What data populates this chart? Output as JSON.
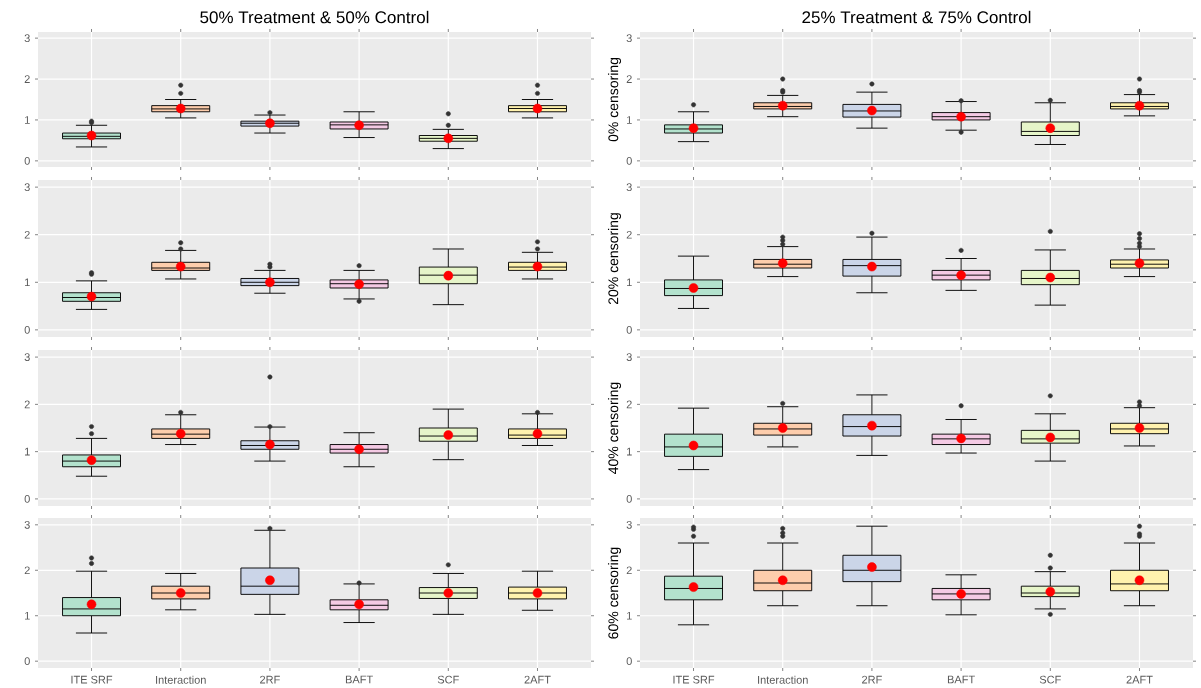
{
  "chart_data": [
    {
      "type": "box",
      "title": "50% Treatment & 50% Control",
      "categories": [
        null,
        null,
        null,
        null,
        null,
        null
      ],
      "colors": [
        "#b3e2cd",
        "#fdcdac",
        "#cbd5e8",
        "#f4cae4",
        "#e6f5c9",
        "#fff2ae"
      ],
      "ylim": [
        -0.15,
        3.15
      ],
      "yticks": [
        0,
        1,
        2,
        3
      ],
      "grid": true,
      "tick_labels": "y",
      "boxes": [
        {
          "low": 0.34,
          "q1": 0.54,
          "median": 0.6,
          "q3": 0.68,
          "high": 0.87,
          "mean": 0.62,
          "outliers": [
            0.93,
            0.97
          ]
        },
        {
          "low": 1.05,
          "q1": 1.2,
          "median": 1.27,
          "q3": 1.35,
          "high": 1.5,
          "mean": 1.28,
          "outliers": [
            1.65,
            1.85
          ]
        },
        {
          "low": 0.68,
          "q1": 0.85,
          "median": 0.92,
          "q3": 0.97,
          "high": 1.12,
          "mean": 0.92,
          "outliers": [
            1.18
          ]
        },
        {
          "low": 0.57,
          "q1": 0.78,
          "median": 0.88,
          "q3": 0.95,
          "high": 1.2,
          "mean": 0.87
        },
        {
          "low": 0.3,
          "q1": 0.48,
          "median": 0.55,
          "q3": 0.62,
          "high": 0.77,
          "mean": 0.55,
          "outliers": [
            0.87,
            1.15
          ]
        },
        {
          "low": 1.05,
          "q1": 1.2,
          "median": 1.28,
          "q3": 1.35,
          "high": 1.5,
          "mean": 1.28,
          "outliers": [
            1.65,
            1.85
          ]
        }
      ]
    },
    {
      "type": "box",
      "title": "25% Treatment & 75% Control",
      "ylabel": "0% censoring",
      "categories": [
        null,
        null,
        null,
        null,
        null,
        null
      ],
      "colors": [
        "#b3e2cd",
        "#fdcdac",
        "#cbd5e8",
        "#f4cae4",
        "#e6f5c9",
        "#fff2ae"
      ],
      "ylim": [
        -0.15,
        3.15
      ],
      "yticks": [
        0,
        1,
        2,
        3
      ],
      "grid": true,
      "tick_labels": "y",
      "boxes": [
        {
          "low": 0.47,
          "q1": 0.68,
          "median": 0.78,
          "q3": 0.88,
          "high": 1.2,
          "mean": 0.8,
          "outliers": [
            1.37
          ]
        },
        {
          "low": 1.08,
          "q1": 1.27,
          "median": 1.33,
          "q3": 1.42,
          "high": 1.6,
          "mean": 1.35,
          "outliers": [
            1.68,
            1.72,
            2.0
          ]
        },
        {
          "low": 0.8,
          "q1": 1.07,
          "median": 1.22,
          "q3": 1.38,
          "high": 1.68,
          "mean": 1.23,
          "outliers": [
            1.88
          ]
        },
        {
          "low": 0.75,
          "q1": 1.0,
          "median": 1.08,
          "q3": 1.18,
          "high": 1.45,
          "mean": 1.08,
          "outliers": [
            0.7,
            1.47
          ]
        },
        {
          "low": 0.4,
          "q1": 0.62,
          "median": 0.72,
          "q3": 0.95,
          "high": 1.42,
          "mean": 0.8,
          "outliers": [
            1.48
          ]
        },
        {
          "low": 1.1,
          "q1": 1.27,
          "median": 1.33,
          "q3": 1.42,
          "high": 1.62,
          "mean": 1.35,
          "outliers": [
            1.68,
            1.72,
            2.0
          ]
        }
      ]
    },
    {
      "type": "box",
      "categories": [
        null,
        null,
        null,
        null,
        null,
        null
      ],
      "colors": [
        "#b3e2cd",
        "#fdcdac",
        "#cbd5e8",
        "#f4cae4",
        "#e6f5c9",
        "#fff2ae"
      ],
      "ylim": [
        -0.15,
        3.15
      ],
      "yticks": [
        0,
        1,
        2,
        3
      ],
      "grid": true,
      "tick_labels": "y",
      "boxes": [
        {
          "low": 0.43,
          "q1": 0.6,
          "median": 0.68,
          "q3": 0.78,
          "high": 1.03,
          "mean": 0.7,
          "outliers": [
            1.17,
            1.2
          ]
        },
        {
          "low": 1.07,
          "q1": 1.25,
          "median": 1.3,
          "q3": 1.42,
          "high": 1.67,
          "mean": 1.33,
          "outliers": [
            1.7,
            1.83
          ]
        },
        {
          "low": 0.77,
          "q1": 0.93,
          "median": 1.0,
          "q3": 1.08,
          "high": 1.25,
          "mean": 1.0,
          "outliers": [
            1.32,
            1.38
          ]
        },
        {
          "low": 0.65,
          "q1": 0.88,
          "median": 0.97,
          "q3": 1.05,
          "high": 1.25,
          "mean": 0.96,
          "outliers": [
            0.6,
            1.35
          ]
        },
        {
          "low": 0.53,
          "q1": 0.97,
          "median": 1.15,
          "q3": 1.32,
          "high": 1.7,
          "mean": 1.14
        },
        {
          "low": 1.07,
          "q1": 1.25,
          "median": 1.32,
          "q3": 1.42,
          "high": 1.63,
          "mean": 1.33,
          "outliers": [
            1.7,
            1.85
          ]
        }
      ]
    },
    {
      "type": "box",
      "ylabel": "20% censoring",
      "categories": [
        null,
        null,
        null,
        null,
        null,
        null
      ],
      "colors": [
        "#b3e2cd",
        "#fdcdac",
        "#cbd5e8",
        "#f4cae4",
        "#e6f5c9",
        "#fff2ae"
      ],
      "ylim": [
        -0.15,
        3.15
      ],
      "yticks": [
        0,
        1,
        2,
        3
      ],
      "grid": true,
      "tick_labels": "y",
      "boxes": [
        {
          "low": 0.45,
          "q1": 0.72,
          "median": 0.87,
          "q3": 1.05,
          "high": 1.55,
          "mean": 0.88
        },
        {
          "low": 1.12,
          "q1": 1.3,
          "median": 1.38,
          "q3": 1.48,
          "high": 1.75,
          "mean": 1.4,
          "outliers": [
            1.8,
            1.88,
            1.95
          ]
        },
        {
          "low": 0.78,
          "q1": 1.13,
          "median": 1.35,
          "q3": 1.48,
          "high": 1.95,
          "mean": 1.33,
          "outliers": [
            2.03
          ]
        },
        {
          "low": 0.83,
          "q1": 1.05,
          "median": 1.15,
          "q3": 1.25,
          "high": 1.5,
          "mean": 1.15,
          "outliers": [
            1.67
          ]
        },
        {
          "low": 0.52,
          "q1": 0.95,
          "median": 1.08,
          "q3": 1.25,
          "high": 1.68,
          "mean": 1.1,
          "outliers": [
            2.07
          ]
        },
        {
          "low": 1.12,
          "q1": 1.3,
          "median": 1.38,
          "q3": 1.47,
          "high": 1.7,
          "mean": 1.4,
          "outliers": [
            1.75,
            1.82,
            1.92,
            2.02
          ]
        }
      ]
    },
    {
      "type": "box",
      "categories": [
        null,
        null,
        null,
        null,
        null,
        null
      ],
      "colors": [
        "#b3e2cd",
        "#fdcdac",
        "#cbd5e8",
        "#f4cae4",
        "#e6f5c9",
        "#fff2ae"
      ],
      "ylim": [
        -0.15,
        3.15
      ],
      "yticks": [
        0,
        1,
        2,
        3
      ],
      "grid": true,
      "tick_labels": "y",
      "boxes": [
        {
          "low": 0.48,
          "q1": 0.68,
          "median": 0.8,
          "q3": 0.93,
          "high": 1.28,
          "mean": 0.82,
          "outliers": [
            1.38,
            1.53
          ]
        },
        {
          "low": 1.15,
          "q1": 1.28,
          "median": 1.37,
          "q3": 1.48,
          "high": 1.78,
          "mean": 1.38,
          "outliers": [
            1.83
          ]
        },
        {
          "low": 0.8,
          "q1": 1.05,
          "median": 1.13,
          "q3": 1.23,
          "high": 1.52,
          "mean": 1.15,
          "outliers": [
            1.53,
            2.58
          ]
        },
        {
          "low": 0.68,
          "q1": 0.97,
          "median": 1.05,
          "q3": 1.15,
          "high": 1.4,
          "mean": 1.05
        },
        {
          "low": 0.83,
          "q1": 1.22,
          "median": 1.33,
          "q3": 1.5,
          "high": 1.9,
          "mean": 1.35
        },
        {
          "low": 1.13,
          "q1": 1.28,
          "median": 1.35,
          "q3": 1.48,
          "high": 1.8,
          "mean": 1.38,
          "outliers": [
            1.83
          ]
        }
      ]
    },
    {
      "type": "box",
      "ylabel": "40% censoring",
      "categories": [
        null,
        null,
        null,
        null,
        null,
        null
      ],
      "colors": [
        "#b3e2cd",
        "#fdcdac",
        "#cbd5e8",
        "#f4cae4",
        "#e6f5c9",
        "#fff2ae"
      ],
      "ylim": [
        -0.15,
        3.15
      ],
      "yticks": [
        0,
        1,
        2,
        3
      ],
      "grid": true,
      "tick_labels": "y",
      "boxes": [
        {
          "low": 0.62,
          "q1": 0.9,
          "median": 1.1,
          "q3": 1.37,
          "high": 1.92,
          "mean": 1.13
        },
        {
          "low": 1.1,
          "q1": 1.35,
          "median": 1.48,
          "q3": 1.6,
          "high": 1.95,
          "mean": 1.5,
          "outliers": [
            2.02
          ]
        },
        {
          "low": 0.92,
          "q1": 1.33,
          "median": 1.53,
          "q3": 1.78,
          "high": 2.2,
          "mean": 1.55
        },
        {
          "low": 0.97,
          "q1": 1.15,
          "median": 1.27,
          "q3": 1.37,
          "high": 1.68,
          "mean": 1.28,
          "outliers": [
            1.97
          ]
        },
        {
          "low": 0.8,
          "q1": 1.18,
          "median": 1.27,
          "q3": 1.45,
          "high": 1.8,
          "mean": 1.3,
          "outliers": [
            2.18
          ]
        },
        {
          "low": 1.12,
          "q1": 1.38,
          "median": 1.48,
          "q3": 1.6,
          "high": 1.93,
          "mean": 1.5,
          "outliers": [
            1.97,
            2.05
          ]
        }
      ]
    },
    {
      "type": "box",
      "categories": [
        "ITE SRF",
        "Interaction",
        "2RF",
        "BAFT",
        "SCF",
        "2AFT"
      ],
      "colors": [
        "#b3e2cd",
        "#fdcdac",
        "#cbd5e8",
        "#f4cae4",
        "#e6f5c9",
        "#fff2ae"
      ],
      "ylim": [
        -0.15,
        3.15
      ],
      "yticks": [
        0,
        1,
        2,
        3
      ],
      "grid": true,
      "boxes": [
        {
          "low": 0.62,
          "q1": 1.0,
          "median": 1.15,
          "q3": 1.4,
          "high": 1.98,
          "mean": 1.25,
          "outliers": [
            2.15,
            2.27
          ]
        },
        {
          "low": 1.13,
          "q1": 1.37,
          "median": 1.5,
          "q3": 1.65,
          "high": 1.93,
          "mean": 1.5
        },
        {
          "low": 1.03,
          "q1": 1.47,
          "median": 1.65,
          "q3": 2.05,
          "high": 2.88,
          "mean": 1.78,
          "outliers": [
            2.92
          ]
        },
        {
          "low": 0.85,
          "q1": 1.13,
          "median": 1.23,
          "q3": 1.35,
          "high": 1.7,
          "mean": 1.25,
          "outliers": [
            1.72
          ]
        },
        {
          "low": 1.03,
          "q1": 1.38,
          "median": 1.5,
          "q3": 1.62,
          "high": 1.93,
          "mean": 1.5,
          "outliers": [
            2.12
          ]
        },
        {
          "low": 1.12,
          "q1": 1.37,
          "median": 1.5,
          "q3": 1.63,
          "high": 1.98,
          "mean": 1.5
        }
      ]
    },
    {
      "type": "box",
      "ylabel": "60% censoring",
      "categories": [
        "ITE SRF",
        "Interaction",
        "2RF",
        "BAFT",
        "SCF",
        "2AFT"
      ],
      "colors": [
        "#b3e2cd",
        "#fdcdac",
        "#cbd5e8",
        "#f4cae4",
        "#e6f5c9",
        "#fff2ae"
      ],
      "ylim": [
        -0.15,
        3.15
      ],
      "yticks": [
        0,
        1,
        2,
        3
      ],
      "grid": true,
      "boxes": [
        {
          "low": 0.8,
          "q1": 1.35,
          "median": 1.6,
          "q3": 1.87,
          "high": 2.6,
          "mean": 1.63,
          "outliers": [
            2.75,
            2.9,
            2.95
          ]
        },
        {
          "low": 1.22,
          "q1": 1.55,
          "median": 1.72,
          "q3": 2.0,
          "high": 2.6,
          "mean": 1.78,
          "outliers": [
            2.75,
            2.82,
            2.92
          ]
        },
        {
          "low": 1.22,
          "q1": 1.75,
          "median": 2.0,
          "q3": 2.33,
          "high": 2.97,
          "mean": 2.07
        },
        {
          "low": 1.02,
          "q1": 1.35,
          "median": 1.48,
          "q3": 1.6,
          "high": 1.9,
          "mean": 1.48
        },
        {
          "low": 1.15,
          "q1": 1.42,
          "median": 1.5,
          "q3": 1.65,
          "high": 1.97,
          "mean": 1.53,
          "outliers": [
            1.03,
            2.05,
            2.33
          ]
        },
        {
          "low": 1.22,
          "q1": 1.55,
          "median": 1.7,
          "q3": 2.0,
          "high": 2.6,
          "mean": 1.78,
          "outliers": [
            2.75,
            2.8,
            2.97
          ]
        }
      ]
    }
  ]
}
